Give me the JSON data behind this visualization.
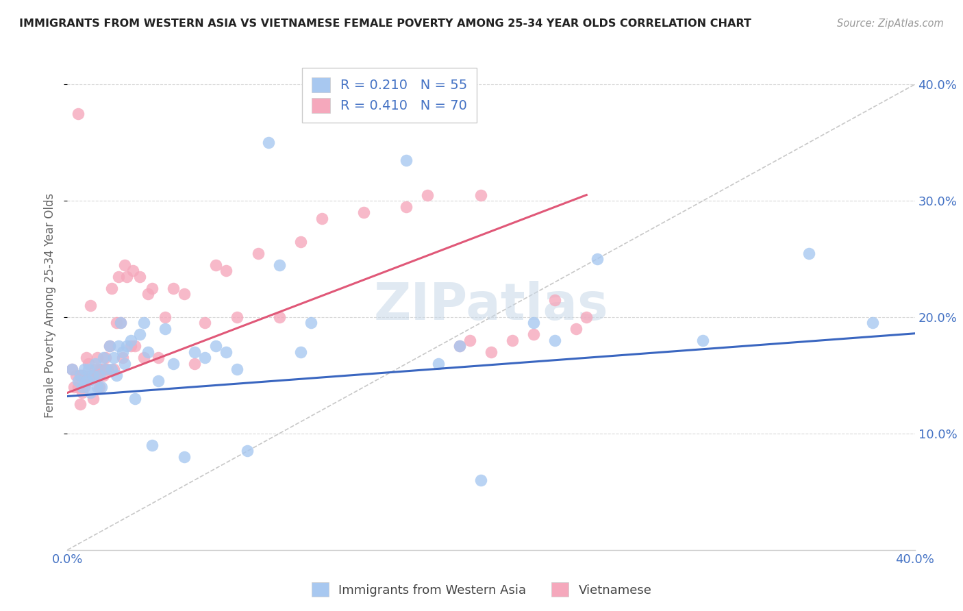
{
  "title": "IMMIGRANTS FROM WESTERN ASIA VS VIETNAMESE FEMALE POVERTY AMONG 25-34 YEAR OLDS CORRELATION CHART",
  "source": "Source: ZipAtlas.com",
  "ylabel": "Female Poverty Among 25-34 Year Olds",
  "legend_label1": "Immigrants from Western Asia",
  "legend_label2": "Vietnamese",
  "R1": "0.210",
  "N1": "55",
  "R2": "0.410",
  "N2": "70",
  "color_blue": "#A8C8F0",
  "color_pink": "#F5A8BC",
  "color_blue_line": "#3A66C0",
  "color_pink_line": "#E05878",
  "color_diag": "#C8C8C8",
  "background": "#FFFFFF",
  "watermark": "ZIPatlas",
  "xlim": [
    0.0,
    0.4
  ],
  "ylim": [
    0.0,
    0.42
  ],
  "blue_line_x": [
    0.0,
    0.4
  ],
  "blue_line_y": [
    0.132,
    0.186
  ],
  "pink_line_x": [
    0.0,
    0.245
  ],
  "pink_line_y": [
    0.135,
    0.305
  ],
  "blue_x": [
    0.002,
    0.005,
    0.006,
    0.007,
    0.008,
    0.009,
    0.01,
    0.01,
    0.011,
    0.012,
    0.013,
    0.014,
    0.015,
    0.016,
    0.017,
    0.018,
    0.02,
    0.021,
    0.022,
    0.023,
    0.024,
    0.025,
    0.026,
    0.027,
    0.028,
    0.03,
    0.032,
    0.034,
    0.036,
    0.038,
    0.04,
    0.043,
    0.046,
    0.05,
    0.055,
    0.06,
    0.065,
    0.07,
    0.075,
    0.08,
    0.085,
    0.095,
    0.1,
    0.11,
    0.115,
    0.16,
    0.175,
    0.185,
    0.195,
    0.22,
    0.23,
    0.25,
    0.3,
    0.35,
    0.38
  ],
  "blue_y": [
    0.155,
    0.145,
    0.15,
    0.14,
    0.155,
    0.145,
    0.155,
    0.145,
    0.135,
    0.15,
    0.16,
    0.14,
    0.15,
    0.14,
    0.165,
    0.155,
    0.175,
    0.155,
    0.165,
    0.15,
    0.175,
    0.195,
    0.17,
    0.16,
    0.175,
    0.18,
    0.13,
    0.185,
    0.195,
    0.17,
    0.09,
    0.145,
    0.19,
    0.16,
    0.08,
    0.17,
    0.165,
    0.175,
    0.17,
    0.155,
    0.085,
    0.35,
    0.245,
    0.17,
    0.195,
    0.335,
    0.16,
    0.175,
    0.06,
    0.195,
    0.18,
    0.25,
    0.18,
    0.255,
    0.195
  ],
  "pink_x": [
    0.002,
    0.003,
    0.004,
    0.005,
    0.005,
    0.006,
    0.006,
    0.007,
    0.007,
    0.008,
    0.008,
    0.009,
    0.009,
    0.01,
    0.01,
    0.011,
    0.011,
    0.012,
    0.012,
    0.013,
    0.014,
    0.014,
    0.015,
    0.015,
    0.016,
    0.017,
    0.018,
    0.018,
    0.019,
    0.02,
    0.021,
    0.022,
    0.023,
    0.024,
    0.025,
    0.026,
    0.027,
    0.028,
    0.03,
    0.031,
    0.032,
    0.034,
    0.036,
    0.038,
    0.04,
    0.043,
    0.046,
    0.05,
    0.055,
    0.06,
    0.065,
    0.07,
    0.075,
    0.08,
    0.09,
    0.1,
    0.11,
    0.12,
    0.14,
    0.16,
    0.17,
    0.185,
    0.19,
    0.195,
    0.2,
    0.21,
    0.22,
    0.23,
    0.24,
    0.245
  ],
  "pink_y": [
    0.155,
    0.14,
    0.15,
    0.375,
    0.14,
    0.15,
    0.125,
    0.15,
    0.135,
    0.15,
    0.14,
    0.165,
    0.145,
    0.16,
    0.145,
    0.21,
    0.15,
    0.15,
    0.13,
    0.155,
    0.165,
    0.15,
    0.155,
    0.14,
    0.155,
    0.15,
    0.165,
    0.155,
    0.155,
    0.175,
    0.225,
    0.155,
    0.195,
    0.235,
    0.195,
    0.165,
    0.245,
    0.235,
    0.175,
    0.24,
    0.175,
    0.235,
    0.165,
    0.22,
    0.225,
    0.165,
    0.2,
    0.225,
    0.22,
    0.16,
    0.195,
    0.245,
    0.24,
    0.2,
    0.255,
    0.2,
    0.265,
    0.285,
    0.29,
    0.295,
    0.305,
    0.175,
    0.18,
    0.305,
    0.17,
    0.18,
    0.185,
    0.215,
    0.19,
    0.2
  ]
}
